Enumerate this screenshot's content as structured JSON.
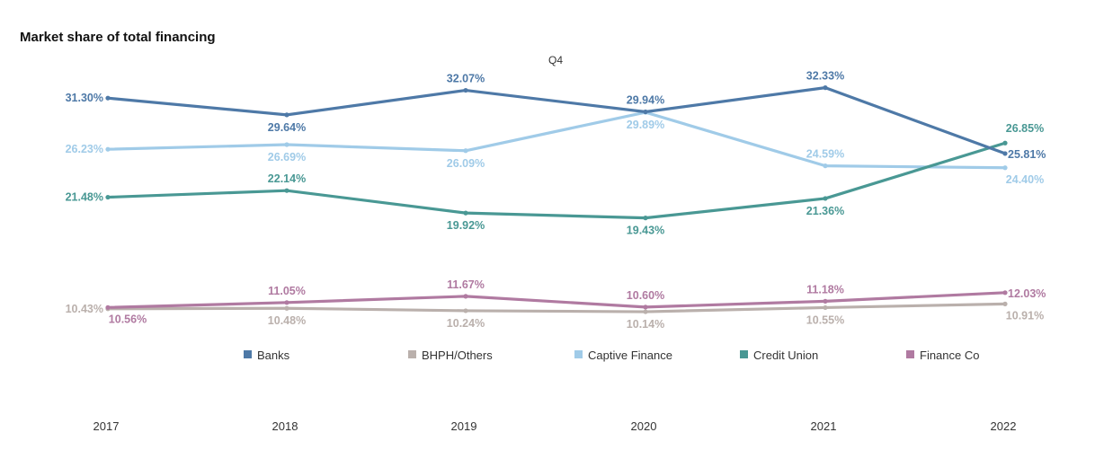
{
  "chart_data": {
    "type": "line",
    "title": "Market share of total financing",
    "subtitle": "Q4",
    "categories": [
      "2017",
      "2018",
      "2019",
      "2020",
      "2021",
      "2022"
    ],
    "legend_position": "bottom",
    "series": [
      {
        "name": "Banks",
        "color": "#4e79a7",
        "values": [
          31.3,
          29.64,
          32.07,
          29.94,
          32.33,
          25.81
        ],
        "labels": [
          "31.30%",
          "29.64%",
          "32.07%",
          "29.94%",
          "32.33%",
          "25.81%"
        ]
      },
      {
        "name": "BHPH/Others",
        "color": "#bab0ac",
        "values": [
          10.43,
          10.48,
          10.24,
          10.14,
          10.55,
          10.91
        ],
        "labels": [
          "10.43%",
          "10.48%",
          "10.24%",
          "10.14%",
          "10.55%",
          "10.91%"
        ]
      },
      {
        "name": "Captive Finance",
        "color": "#a0cbe8",
        "values": [
          26.23,
          26.69,
          26.09,
          29.89,
          24.59,
          24.4
        ],
        "labels": [
          "26.23%",
          "26.69%",
          "26.09%",
          "29.89%",
          "24.59%",
          "24.40%"
        ]
      },
      {
        "name": "Credit Union",
        "color": "#499894",
        "values": [
          21.48,
          22.14,
          19.92,
          19.43,
          21.36,
          26.85
        ],
        "labels": [
          "21.48%",
          "22.14%",
          "19.92%",
          "19.43%",
          "21.36%",
          "26.85%"
        ]
      },
      {
        "name": "Finance Co",
        "color": "#b07aa1",
        "values": [
          10.56,
          11.05,
          11.67,
          10.6,
          11.18,
          12.03
        ],
        "labels": [
          "10.56%",
          "11.05%",
          "11.67%",
          "10.60%",
          "11.18%",
          "12.03%"
        ]
      }
    ]
  }
}
